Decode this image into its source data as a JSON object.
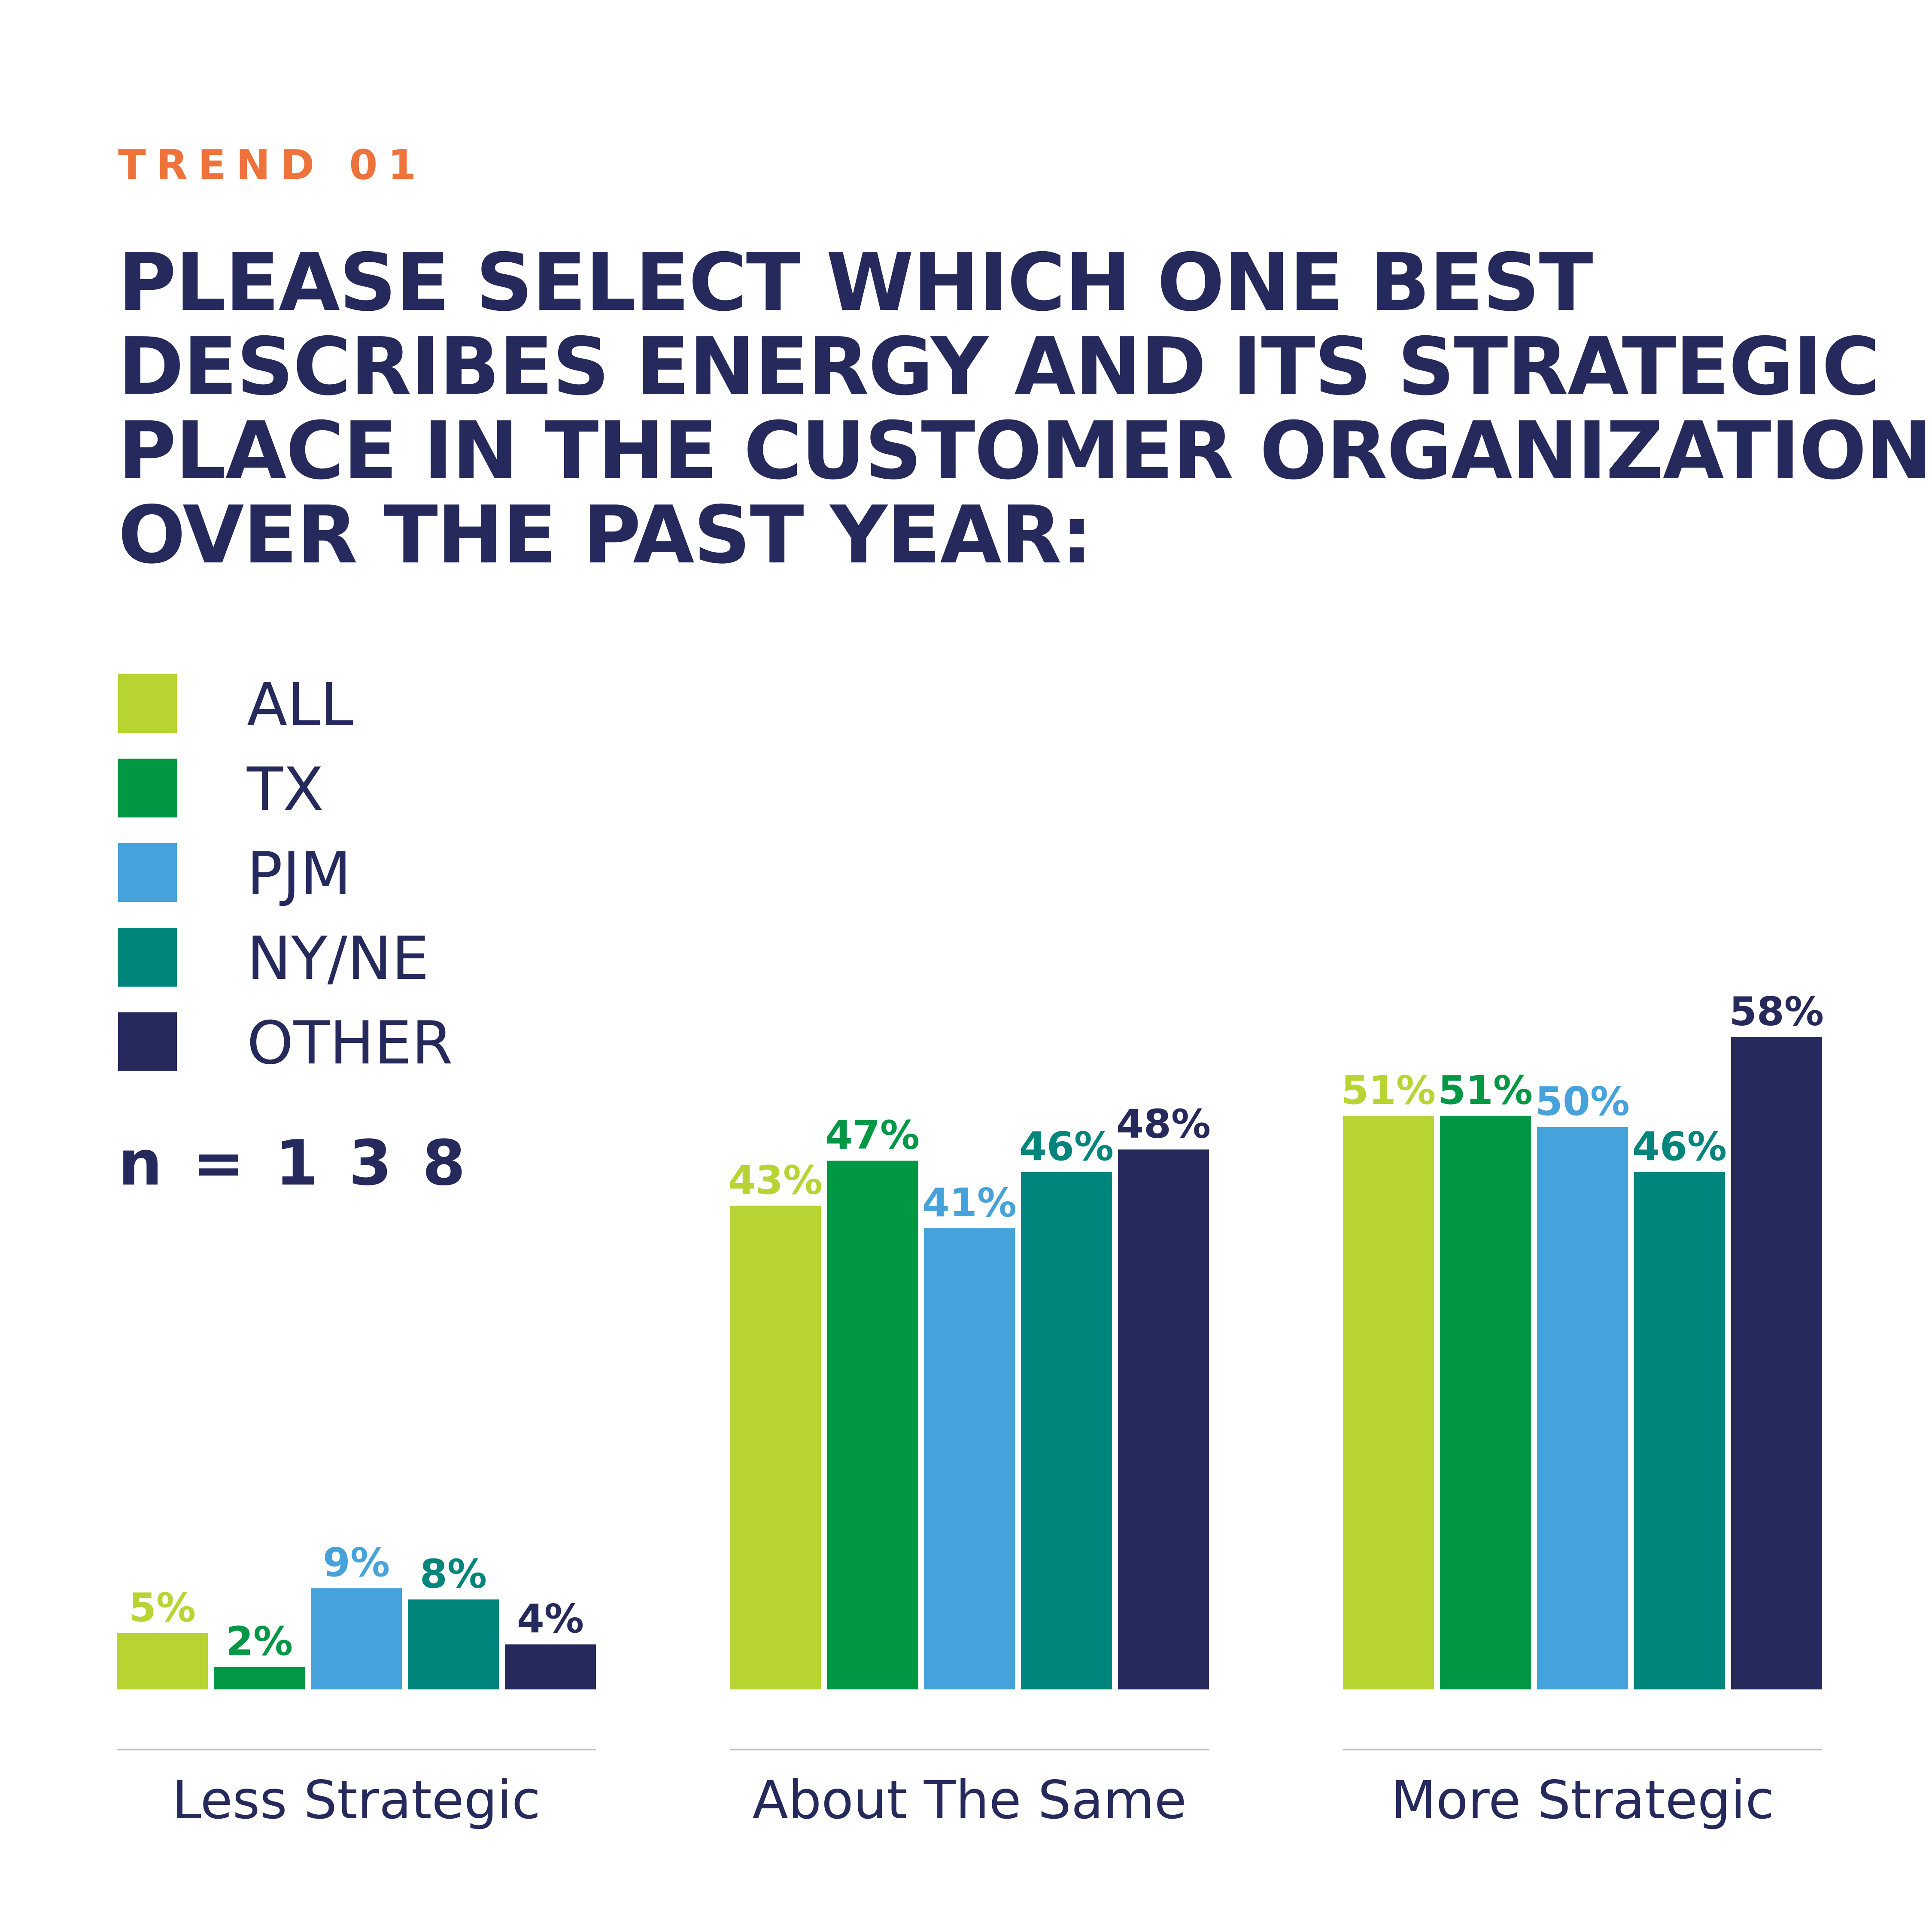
{
  "eyebrow": "TREND 01",
  "title_lines": [
    "PLEASE SELECT WHICH ONE BEST",
    "DESCRIBES ENERGY AND ITS STRATEGIC",
    "PLACE IN THE CUSTOMER ORGANIZATION",
    "OVER THE PAST YEAR:"
  ],
  "sample_size": "n = 1 3 8",
  "colors": {
    "ALL": "#B8D432",
    "TX": "#009845",
    "PJM": "#46A2DB",
    "NY/NE": "#00857C",
    "OTHER": "#25295B",
    "text": "#25295B",
    "eyebrow": "#EE7239",
    "axis_line": "#BBBBBB"
  },
  "chart_data": {
    "type": "bar",
    "title": "PLEASE SELECT WHICH ONE BEST DESCRIBES ENERGY AND ITS STRATEGIC PLACE IN THE CUSTOMER ORGANIZATION OVER THE PAST YEAR:",
    "categories": [
      "Less Strategic",
      "About The Same",
      "More Strategic"
    ],
    "series": [
      {
        "name": "ALL",
        "values": [
          5,
          43,
          51
        ],
        "labels": [
          "5%",
          "43%",
          "51%"
        ]
      },
      {
        "name": "TX",
        "values": [
          2,
          47,
          51
        ],
        "labels": [
          "2%",
          "47%",
          "51%"
        ]
      },
      {
        "name": "PJM",
        "values": [
          9,
          41,
          50
        ],
        "labels": [
          "9%",
          "41%",
          "50%"
        ]
      },
      {
        "name": "NY/NE",
        "values": [
          8,
          46,
          46
        ],
        "labels": [
          "8%",
          "46%",
          "46%"
        ]
      },
      {
        "name": "OTHER",
        "values": [
          4,
          48,
          58
        ],
        "labels": [
          "4%",
          "48%",
          "58%"
        ]
      }
    ],
    "legend_position": "top-left",
    "grid": false,
    "yaxis_visible": false,
    "ylim": [
      0,
      58
    ],
    "xlabel": "",
    "ylabel": ""
  }
}
